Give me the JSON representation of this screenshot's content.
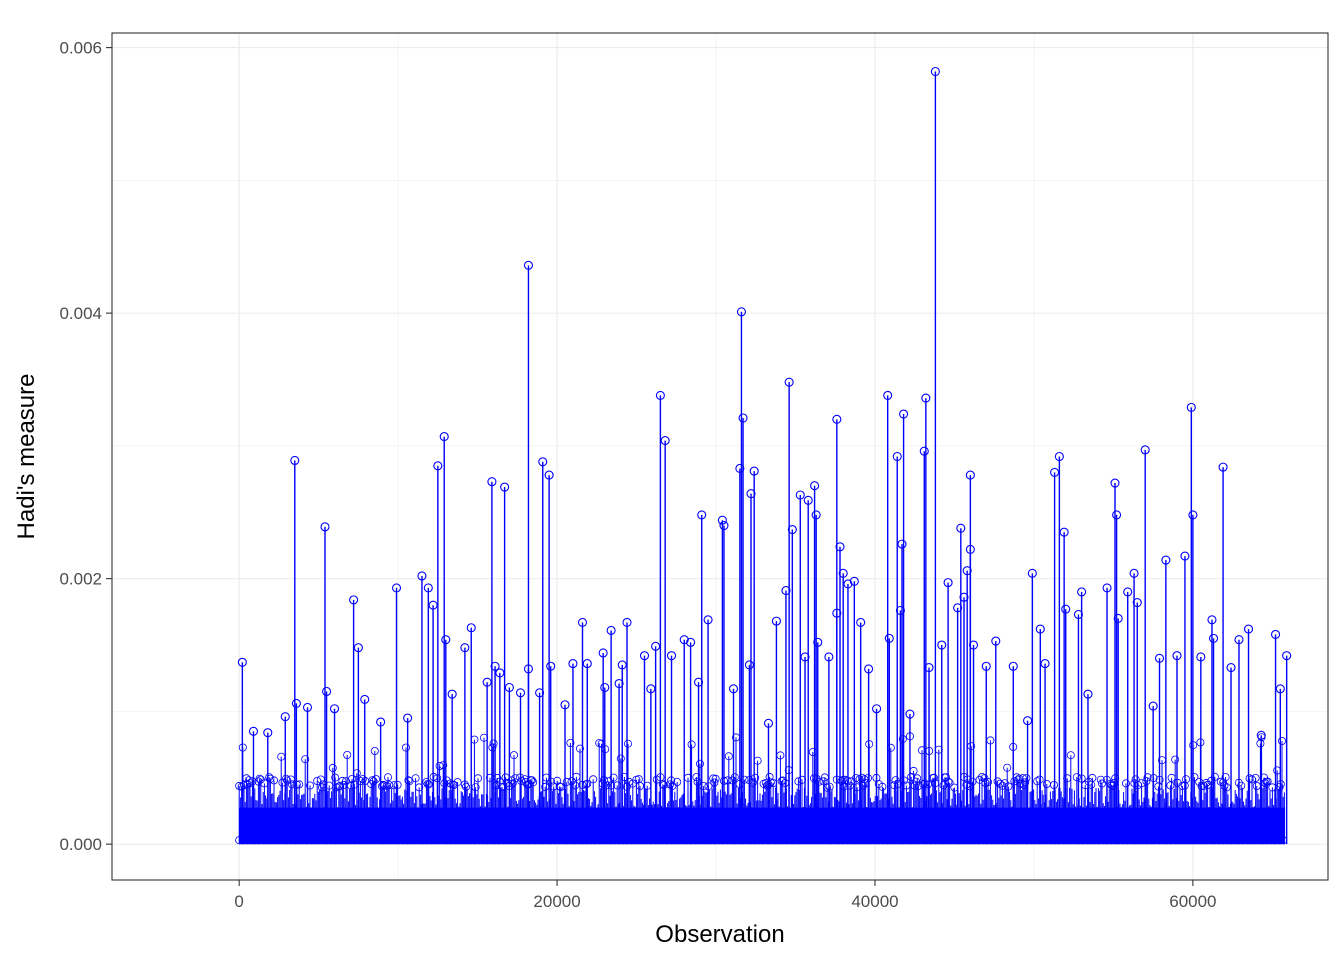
{
  "chart_data": {
    "type": "scatter",
    "style": "stem",
    "title": "",
    "xlabel": "Observation",
    "ylabel": "Hadi's measure",
    "xlim": [
      -8000,
      68500
    ],
    "ylim": [
      -0.00027,
      0.00611
    ],
    "xticks": [
      0,
      20000,
      40000,
      60000
    ],
    "xtick_labels": [
      "0",
      "20000",
      "40000",
      "60000"
    ],
    "yticks": [
      0.0,
      0.002,
      0.004,
      0.006
    ],
    "ytick_labels": [
      "0.000",
      "0.002",
      "0.004",
      "0.006"
    ],
    "grid": true,
    "theme": "bw",
    "marker": "open-circle",
    "color": "#0000ff",
    "n_observations": 65800,
    "baseline_band": {
      "lower": 0.0,
      "typical_upper": 0.0005,
      "dense_upper": 0.0008
    },
    "points": [
      [
        200,
        0.00137
      ],
      [
        900,
        0.00085
      ],
      [
        1800,
        0.00084
      ],
      [
        2900,
        0.00096
      ],
      [
        3500,
        0.00289
      ],
      [
        3600,
        0.00106
      ],
      [
        4300,
        0.00103
      ],
      [
        5400,
        0.00239
      ],
      [
        5500,
        0.00115
      ],
      [
        6000,
        0.00102
      ],
      [
        7200,
        0.00184
      ],
      [
        7500,
        0.00148
      ],
      [
        7900,
        0.00109
      ],
      [
        8900,
        0.00092
      ],
      [
        9900,
        0.00193
      ],
      [
        10600,
        0.00095
      ],
      [
        11500,
        0.00202
      ],
      [
        11900,
        0.00193
      ],
      [
        12200,
        0.0018
      ],
      [
        12500,
        0.00285
      ],
      [
        12900,
        0.00307
      ],
      [
        13000,
        0.00154
      ],
      [
        13400,
        0.00113
      ],
      [
        14200,
        0.00148
      ],
      [
        14600,
        0.00163
      ],
      [
        15600,
        0.00122
      ],
      [
        15900,
        0.00273
      ],
      [
        16100,
        0.00134
      ],
      [
        16400,
        0.00129
      ],
      [
        16700,
        0.00269
      ],
      [
        17000,
        0.00118
      ],
      [
        17700,
        0.00114
      ],
      [
        18200,
        0.00436
      ],
      [
        18200,
        0.00132
      ],
      [
        18900,
        0.00114
      ],
      [
        19100,
        0.00288
      ],
      [
        19500,
        0.00278
      ],
      [
        19600,
        0.00134
      ],
      [
        20500,
        0.00105
      ],
      [
        21000,
        0.00136
      ],
      [
        21600,
        0.00167
      ],
      [
        21900,
        0.00136
      ],
      [
        22900,
        0.00144
      ],
      [
        23000,
        0.00118
      ],
      [
        23400,
        0.00161
      ],
      [
        23900,
        0.00121
      ],
      [
        24100,
        0.00135
      ],
      [
        24400,
        0.00167
      ],
      [
        25500,
        0.00142
      ],
      [
        25900,
        0.00117
      ],
      [
        26200,
        0.00149
      ],
      [
        26500,
        0.00338
      ],
      [
        26800,
        0.00304
      ],
      [
        27200,
        0.00142
      ],
      [
        28000,
        0.00154
      ],
      [
        28400,
        0.00152
      ],
      [
        28900,
        0.00122
      ],
      [
        29100,
        0.00248
      ],
      [
        29500,
        0.00169
      ],
      [
        30400,
        0.00244
      ],
      [
        30500,
        0.0024
      ],
      [
        31100,
        0.00117
      ],
      [
        31500,
        0.00283
      ],
      [
        31600,
        0.00401
      ],
      [
        31700,
        0.00321
      ],
      [
        32100,
        0.00135
      ],
      [
        32200,
        0.00264
      ],
      [
        32400,
        0.00281
      ],
      [
        33300,
        0.00091
      ],
      [
        33800,
        0.00168
      ],
      [
        34400,
        0.00191
      ],
      [
        34600,
        0.00348
      ],
      [
        34800,
        0.00237
      ],
      [
        35300,
        0.00263
      ],
      [
        35600,
        0.00141
      ],
      [
        35800,
        0.00259
      ],
      [
        36200,
        0.0027
      ],
      [
        36300,
        0.00248
      ],
      [
        36400,
        0.00152
      ],
      [
        37100,
        0.00141
      ],
      [
        37600,
        0.0032
      ],
      [
        37600,
        0.00174
      ],
      [
        37800,
        0.00224
      ],
      [
        38000,
        0.00204
      ],
      [
        38300,
        0.00196
      ],
      [
        38700,
        0.00198
      ],
      [
        39100,
        0.00167
      ],
      [
        39600,
        0.00132
      ],
      [
        40100,
        0.00102
      ],
      [
        40800,
        0.00338
      ],
      [
        40900,
        0.00155
      ],
      [
        41400,
        0.00292
      ],
      [
        41600,
        0.00176
      ],
      [
        41700,
        0.00226
      ],
      [
        41800,
        0.00324
      ],
      [
        42200,
        0.00098
      ],
      [
        43100,
        0.00296
      ],
      [
        43200,
        0.00336
      ],
      [
        43400,
        0.00133
      ],
      [
        43800,
        0.00582
      ],
      [
        44200,
        0.0015
      ],
      [
        44600,
        0.00197
      ],
      [
        45200,
        0.00178
      ],
      [
        45400,
        0.00238
      ],
      [
        45600,
        0.00186
      ],
      [
        45800,
        0.00206
      ],
      [
        46000,
        0.00278
      ],
      [
        46000,
        0.00222
      ],
      [
        46200,
        0.0015
      ],
      [
        47000,
        0.00134
      ],
      [
        47600,
        0.00153
      ],
      [
        48700,
        0.00134
      ],
      [
        49600,
        0.00093
      ],
      [
        49900,
        0.00204
      ],
      [
        50400,
        0.00162
      ],
      [
        50700,
        0.00136
      ],
      [
        51300,
        0.0028
      ],
      [
        51600,
        0.00292
      ],
      [
        51900,
        0.00235
      ],
      [
        52000,
        0.00177
      ],
      [
        52800,
        0.00173
      ],
      [
        53000,
        0.0019
      ],
      [
        53400,
        0.00113
      ],
      [
        54600,
        0.00193
      ],
      [
        55100,
        0.00272
      ],
      [
        55200,
        0.00248
      ],
      [
        55300,
        0.0017
      ],
      [
        55900,
        0.0019
      ],
      [
        56300,
        0.00204
      ],
      [
        56500,
        0.00182
      ],
      [
        57000,
        0.00297
      ],
      [
        57500,
        0.00104
      ],
      [
        57900,
        0.0014
      ],
      [
        58300,
        0.00214
      ],
      [
        59000,
        0.00142
      ],
      [
        59500,
        0.00217
      ],
      [
        59900,
        0.00329
      ],
      [
        60000,
        0.00248
      ],
      [
        60500,
        0.00141
      ],
      [
        61200,
        0.00169
      ],
      [
        61300,
        0.00155
      ],
      [
        61900,
        0.00284
      ],
      [
        62400,
        0.00133
      ],
      [
        62900,
        0.00154
      ],
      [
        63500,
        0.00162
      ],
      [
        64300,
        0.00082
      ],
      [
        65200,
        0.00158
      ],
      [
        65500,
        0.00117
      ],
      [
        65900,
        0.00142
      ]
    ]
  }
}
